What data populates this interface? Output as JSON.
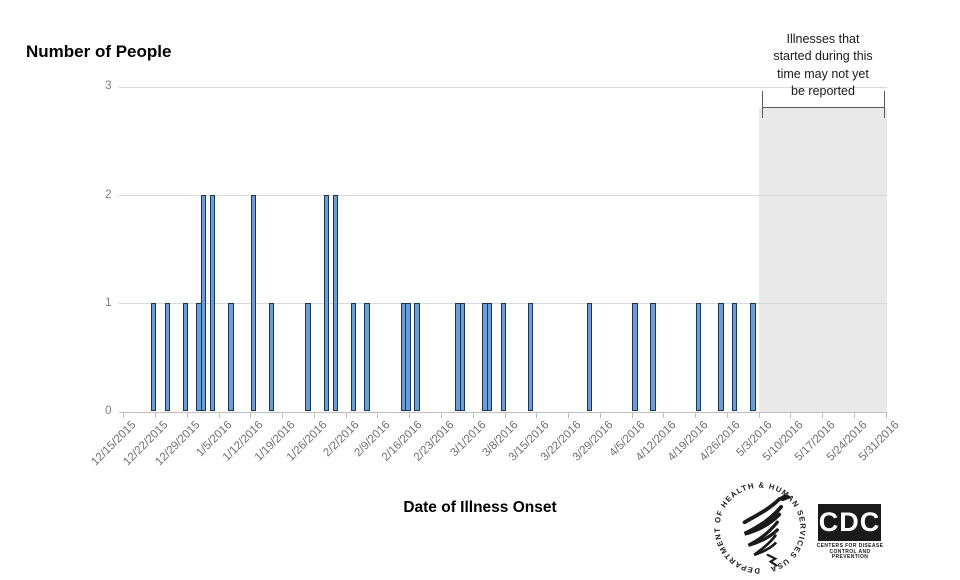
{
  "chart_title": "Number of People",
  "x_axis_title": "Date of Illness Onset",
  "annotation": {
    "lines": [
      "Illnesses that",
      "started during this",
      "time may not yet",
      "be reported"
    ]
  },
  "colors": {
    "bar_fill": "#6C9DD4",
    "bar_border": "#16365C",
    "gridline": "#D9D9D9",
    "axis_line": "#BFBFBF",
    "tick_label": "#6E6E6E",
    "shaded_region": "#E9E9E9",
    "bracket": "#595959",
    "annotation_text": "#1A1A1A",
    "logo_black": "#1A1A1A"
  },
  "logos": {
    "cdc_acronym": "CDC",
    "cdc_sub_line1": "CENTERS FOR DISEASE",
    "cdc_sub_line2": "CONTROL AND PREVENTION",
    "hhs_ring_text": "DEPARTMENT OF HEALTH & HUMAN SERVICES USA"
  },
  "chart_data": {
    "type": "bar",
    "title": "Number of People",
    "xlabel": "Date of Illness Onset",
    "ylabel": "",
    "ylim": [
      0,
      3
    ],
    "yticks": [
      "0",
      "1",
      "2",
      "3"
    ],
    "grid": true,
    "legend": false,
    "x_start_date": "12/15/2015",
    "x_tick_labels": [
      "12/15/2015",
      "12/22/2015",
      "12/29/2015",
      "1/5/2016",
      "1/12/2016",
      "1/19/2016",
      "1/26/2016",
      "2/2/2016",
      "2/9/2016",
      "2/16/2016",
      "2/23/2016",
      "3/1/2016",
      "3/8/2016",
      "3/15/2016",
      "3/22/2016",
      "3/29/2016",
      "4/5/2016",
      "4/12/2016",
      "4/19/2016",
      "4/26/2016",
      "5/3/2016",
      "5/10/2016",
      "5/17/2016",
      "5/24/2016",
      "5/31/2016"
    ],
    "points": [
      {
        "date": "12/21/2015",
        "count": 1
      },
      {
        "date": "12/24/2015",
        "count": 1
      },
      {
        "date": "12/28/2015",
        "count": 1
      },
      {
        "date": "12/31/2015",
        "count": 1
      },
      {
        "date": "1/1/2016",
        "count": 2
      },
      {
        "date": "1/3/2016",
        "count": 2
      },
      {
        "date": "1/7/2016",
        "count": 1
      },
      {
        "date": "1/12/2016",
        "count": 2
      },
      {
        "date": "1/16/2016",
        "count": 1
      },
      {
        "date": "1/24/2016",
        "count": 1
      },
      {
        "date": "1/28/2016",
        "count": 2
      },
      {
        "date": "1/30/2016",
        "count": 2
      },
      {
        "date": "2/3/2016",
        "count": 1
      },
      {
        "date": "2/6/2016",
        "count": 1
      },
      {
        "date": "2/14/2016",
        "count": 1
      },
      {
        "date": "2/15/2016",
        "count": 1
      },
      {
        "date": "2/17/2016",
        "count": 1
      },
      {
        "date": "2/26/2016",
        "count": 1
      },
      {
        "date": "2/27/2016",
        "count": 1
      },
      {
        "date": "3/3/2016",
        "count": 1
      },
      {
        "date": "3/4/2016",
        "count": 1
      },
      {
        "date": "3/7/2016",
        "count": 1
      },
      {
        "date": "3/13/2016",
        "count": 1
      },
      {
        "date": "3/26/2016",
        "count": 1
      },
      {
        "date": "4/5/2016",
        "count": 1
      },
      {
        "date": "4/9/2016",
        "count": 1
      },
      {
        "date": "4/19/2016",
        "count": 1
      },
      {
        "date": "4/24/2016",
        "count": 1
      },
      {
        "date": "4/27/2016",
        "count": 1
      },
      {
        "date": "5/1/2016",
        "count": 1
      }
    ],
    "shaded_region": {
      "start_date": "5/3/2016",
      "label": "Illnesses that started during this time may not yet be reported"
    }
  }
}
